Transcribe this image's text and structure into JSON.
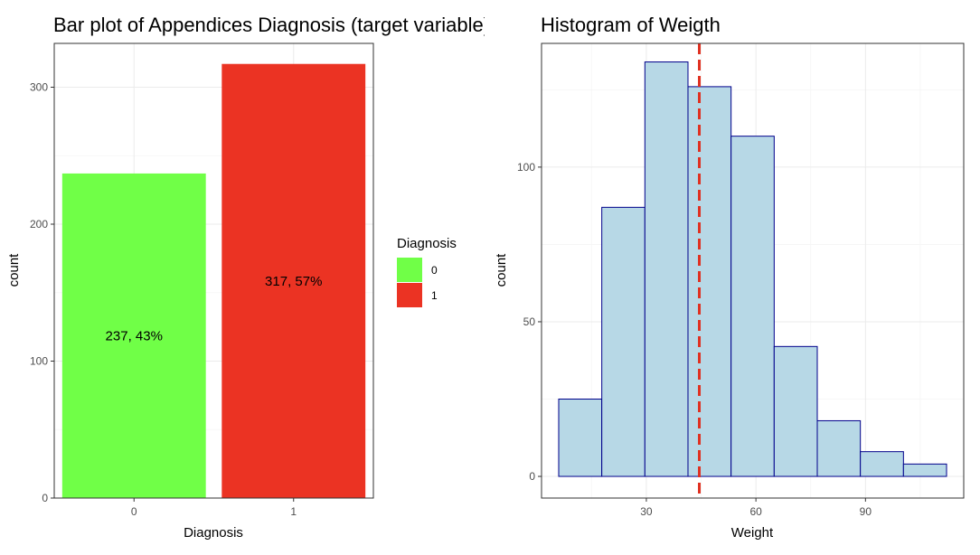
{
  "chart_data": [
    {
      "type": "bar",
      "title": "Bar plot of Appendices Diagnosis (target variable)",
      "xlabel": "Diagnosis",
      "ylabel": "count",
      "categories": [
        "0",
        "1"
      ],
      "values": [
        237,
        317
      ],
      "data_labels": [
        "237, 43%",
        "317, 57%"
      ],
      "colors": [
        "#70FF47",
        "#EB3323"
      ],
      "ylim": [
        0,
        332
      ],
      "yticks": [
        0,
        100,
        200,
        300
      ],
      "grid": true,
      "legend": {
        "title": "Diagnosis",
        "placement": "right",
        "entries": [
          {
            "label": "0",
            "color": "#70FF47"
          },
          {
            "label": "1",
            "color": "#EB3323"
          }
        ]
      }
    },
    {
      "type": "bar",
      "subtype": "histogram",
      "title": "Histogram of Weigth",
      "xlabel": "Weight",
      "ylabel": "count",
      "bins": [
        {
          "start": 6.0,
          "end": 17.8,
          "count": 25
        },
        {
          "start": 17.8,
          "end": 29.6,
          "count": 87
        },
        {
          "start": 29.6,
          "end": 41.4,
          "count": 134
        },
        {
          "start": 41.4,
          "end": 53.2,
          "count": 126
        },
        {
          "start": 53.2,
          "end": 65.0,
          "count": 110
        },
        {
          "start": 65.0,
          "end": 76.8,
          "count": 42
        },
        {
          "start": 76.8,
          "end": 88.6,
          "count": 18
        },
        {
          "start": 88.6,
          "end": 100.4,
          "count": 8
        },
        {
          "start": 100.4,
          "end": 112.2,
          "count": 4
        }
      ],
      "fill_color": "#B7D8E6",
      "edge_color": "#00008B",
      "reference_line": {
        "x": 44.5,
        "color": "#E03020",
        "style": "dashed"
      },
      "xlim": [
        1.3,
        116.9
      ],
      "ylim": [
        -7,
        140
      ],
      "xticks": [
        30,
        60,
        90
      ],
      "yticks": [
        0,
        50,
        100
      ],
      "grid": true
    }
  ]
}
